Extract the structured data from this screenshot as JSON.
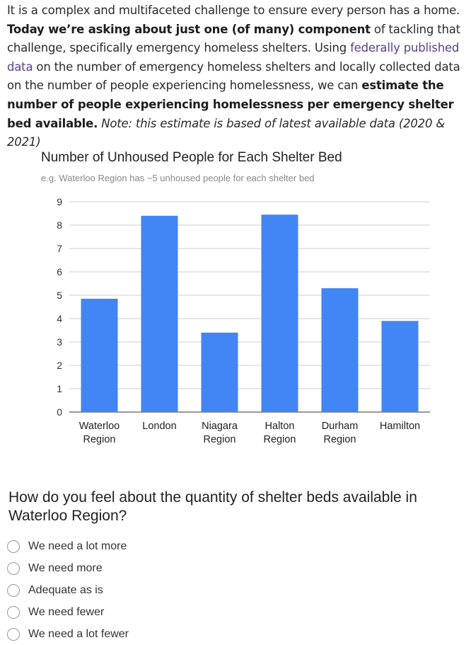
{
  "intro": {
    "p1": "It is a complex and multifaceted challenge to ensure every person has a home. ",
    "b1": "Today we’re asking about just one (of many) component",
    "p2": " of tackling that challenge, specifically emergency homeless shelters. Using ",
    "link": "federally published data",
    "p3": " on the number of emergency homeless shelters and locally collected data on the number of people experiencing homelessness, we can ",
    "b2": "estimate the number of people experiencing homelessness per emergency shelter bed available.",
    "note": " Note: this estimate is based of latest available data (2020 & 2021)"
  },
  "colors": {
    "bar": "#4285f4",
    "link": "#5b3f8c",
    "grid": "#cccccc"
  },
  "chart_data": {
    "type": "bar",
    "title": "Number of Unhoused People for Each Shelter Bed",
    "subtitle": "e.g. Waterloo Region has ~5 unhoused people for each shelter bed",
    "categories": [
      [
        "Waterloo",
        "Region"
      ],
      [
        "London"
      ],
      [
        "Niagara",
        "Region"
      ],
      [
        "Halton",
        "Region"
      ],
      [
        "Durham",
        "Region"
      ],
      [
        "Hamilton"
      ]
    ],
    "values": [
      4.85,
      8.4,
      3.4,
      8.45,
      5.3,
      3.9
    ],
    "ylim": [
      0,
      9
    ],
    "yticks": [
      0,
      1,
      2,
      3,
      4,
      5,
      6,
      7,
      8,
      9
    ],
    "xlabel": "",
    "ylabel": "",
    "grid": true,
    "legend": "none"
  },
  "question": {
    "text": "How do you feel about the quantity of shelter beds available in Waterloo Region?",
    "options": [
      "We need a lot more",
      "We need more",
      "Adequate as is",
      "We need fewer",
      "We need a lot fewer"
    ]
  }
}
